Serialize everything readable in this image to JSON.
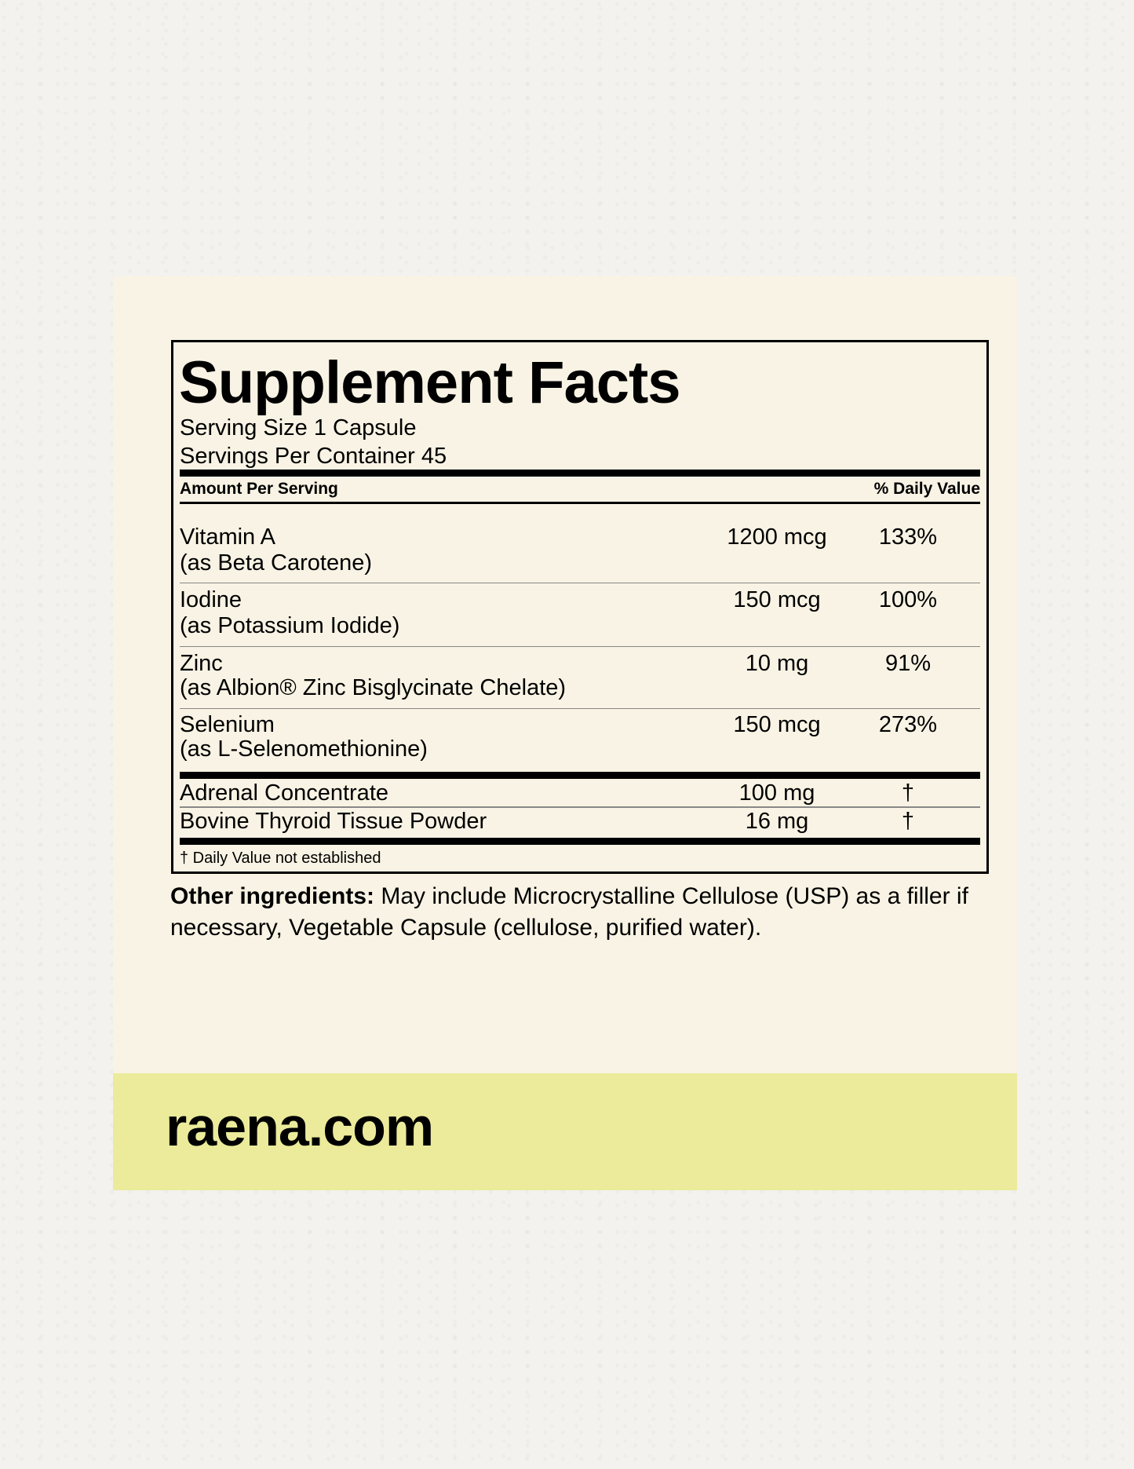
{
  "label": {
    "title": "Supplement Facts",
    "serving_size": "Serving Size 1 Capsule",
    "servings_per_container": "Servings Per Container 45",
    "header_amount": "Amount Per Serving",
    "header_dv": "% Daily Value",
    "nutrients": [
      {
        "name": "Vitamin A",
        "source": "(as Beta Carotene)",
        "amount": "1200 mcg",
        "dv": "133%"
      },
      {
        "name": "Iodine",
        "source": "(as Potassium Iodide)",
        "amount": "150 mcg",
        "dv": "100%"
      },
      {
        "name": "Zinc",
        "source": "(as Albion® Zinc Bisglycinate Chelate)",
        "amount": "10 mg",
        "dv": "91%"
      },
      {
        "name": "Selenium",
        "source": "(as L-Selenomethionine)",
        "amount": "150 mcg",
        "dv": "273%"
      }
    ],
    "other_items": [
      {
        "name": "Adrenal Concentrate",
        "amount": "100 mg",
        "dv": "†"
      },
      {
        "name": "Bovine Thyroid Tissue Powder",
        "amount": "16 mg",
        "dv": "†"
      }
    ],
    "footnote": "† Daily Value not established"
  },
  "other_ingredients": {
    "label": "Other ingredients:",
    "text": " May include Microcrystalline Cellulose (USP) as a filler if necessary, Vegetable Capsule (cellulose, purified water)."
  },
  "brand": {
    "website": "raena.com"
  },
  "colors": {
    "card": "#f8f3e4",
    "band": "#ebeb9b",
    "text": "#000000"
  }
}
